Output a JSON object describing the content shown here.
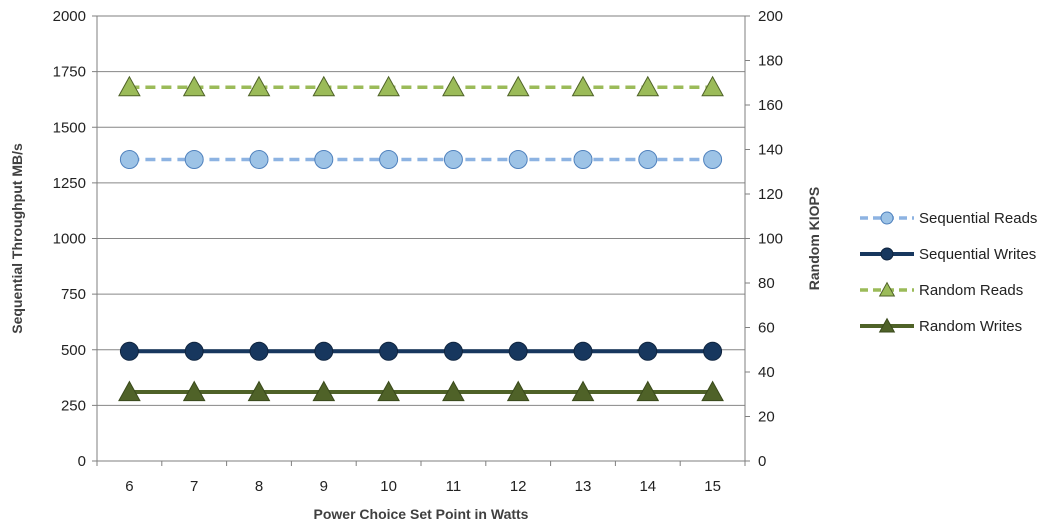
{
  "chart_data": {
    "type": "line",
    "title": "",
    "xlabel": "Power Choice Set Point in Watts",
    "ylabel_left": "Sequential Throughput MB/s",
    "ylabel_right": "Random KIOPS",
    "categories": [
      "6",
      "7",
      "8",
      "9",
      "10",
      "11",
      "12",
      "13",
      "14",
      "15"
    ],
    "ylim_left": [
      0,
      2000
    ],
    "yticks_left": [
      0,
      250,
      500,
      750,
      1000,
      1250,
      1500,
      1750,
      2000
    ],
    "ylim_right": [
      0,
      200
    ],
    "yticks_right": [
      0,
      20,
      40,
      60,
      80,
      100,
      120,
      140,
      160,
      180,
      200
    ],
    "grid": true,
    "legend_position": "right",
    "series": [
      {
        "name": "Sequential Reads",
        "axis": "left",
        "marker": "circle",
        "line": "dashed",
        "line_color": "#8db3e2",
        "marker_fill": "#9dc3e6",
        "marker_stroke": "#4f81bd",
        "values": [
          1355,
          1355,
          1355,
          1355,
          1355,
          1355,
          1355,
          1355,
          1355,
          1355
        ]
      },
      {
        "name": "Sequential Writes",
        "axis": "left",
        "marker": "circle",
        "line": "solid",
        "line_color": "#17375e",
        "marker_fill": "#17375e",
        "marker_stroke": "#0f243e",
        "values": [
          493,
          493,
          493,
          493,
          493,
          493,
          493,
          493,
          493,
          493
        ]
      },
      {
        "name": "Random Reads",
        "axis": "right",
        "marker": "triangle",
        "line": "dashed",
        "line_color": "#9bbb59",
        "marker_fill": "#9bbb59",
        "marker_stroke": "#4f6228",
        "values": [
          168,
          168,
          168,
          168,
          168,
          168,
          168,
          168,
          168,
          168
        ]
      },
      {
        "name": "Random Writes",
        "axis": "right",
        "marker": "triangle",
        "line": "solid",
        "line_color": "#4f6228",
        "marker_fill": "#4f6228",
        "marker_stroke": "#3a4a1c",
        "values": [
          31,
          31,
          31,
          31,
          31,
          31,
          31,
          31,
          31,
          31
        ]
      }
    ]
  }
}
